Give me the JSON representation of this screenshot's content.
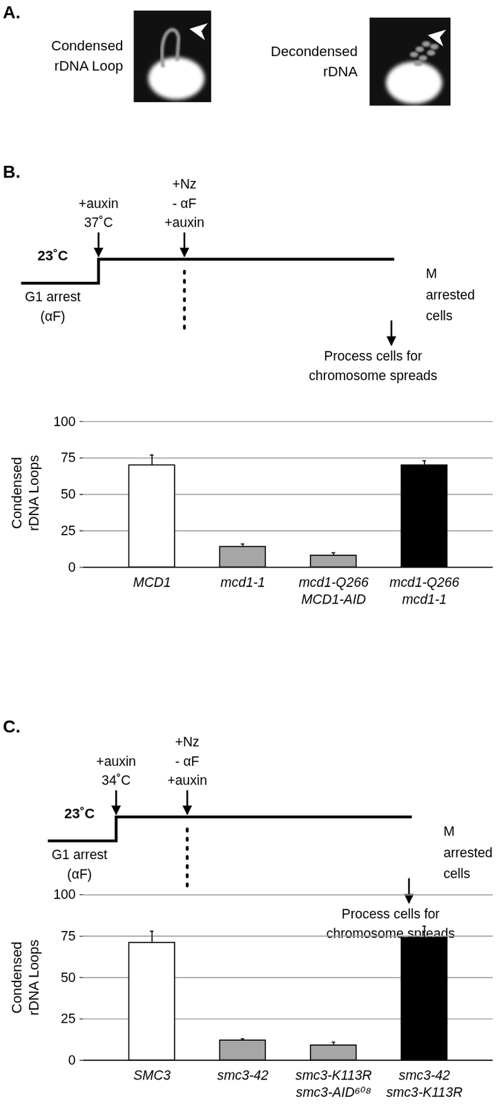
{
  "figure": {
    "panel_labels": [
      "A.",
      "B.",
      "C."
    ],
    "images": [
      {
        "label": "Condensed\nrDNA Loop"
      },
      {
        "label": "Decondensed\nrDNA"
      }
    ],
    "timelines": [
      {
        "start": "23˚C",
        "arrest": "G1 arrest\n(αF)",
        "step1": "+auxin\n37˚C",
        "step2": "+Nz\n- αF\n+auxin",
        "end": "M\narrested\ncells",
        "process": "Process cells for\nchromosome spreads"
      },
      {
        "start": "23˚C",
        "arrest": "G1 arrest\n(αF)",
        "step1": "+auxin\n34˚C",
        "step2": "+Nz\n- αF\n+auxin",
        "end": "M\narrested\ncells",
        "process": "Process cells for\nchromosome spreads"
      }
    ]
  },
  "chart_data": [
    {
      "type": "bar",
      "ylabel": "Condensed\nrDNA Loops",
      "categories": [
        "MCD1",
        "mcd1-1",
        "mcd1-Q266\nMCD1-AID",
        "mcd1-Q266\nmcd1-1"
      ],
      "values": [
        70,
        14,
        8,
        70
      ],
      "errors": [
        7,
        2,
        2,
        3
      ],
      "colors": [
        "#ffffff",
        "#a6a6a6",
        "#a6a6a6",
        "#000000"
      ],
      "ylim": [
        0,
        100
      ],
      "yticks": [
        0,
        25,
        50,
        75,
        100
      ],
      "grid": true
    },
    {
      "type": "bar",
      "ylabel": "Condensed\nrDNA Loops",
      "categories": [
        "SMC3",
        "smc3-42",
        "smc3-K113R\nsmc3-AID⁶⁰⁸",
        "smc3-42\nsmc3-K113R"
      ],
      "values": [
        71,
        12,
        9,
        74
      ],
      "errors": [
        7,
        1,
        2,
        7
      ],
      "colors": [
        "#ffffff",
        "#a6a6a6",
        "#a6a6a6",
        "#000000"
      ],
      "ylim": [
        0,
        100
      ],
      "yticks": [
        0,
        25,
        50,
        75,
        100
      ],
      "grid": true
    }
  ]
}
